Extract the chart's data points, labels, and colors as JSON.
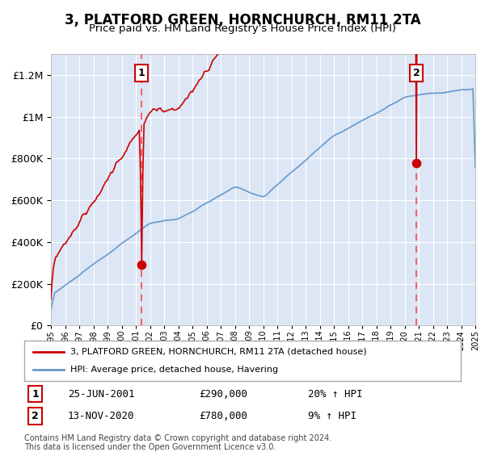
{
  "title": "3, PLATFORD GREEN, HORNCHURCH, RM11 2TA",
  "subtitle": "Price paid vs. HM Land Registry's House Price Index (HPI)",
  "title_fontsize": 12,
  "subtitle_fontsize": 10,
  "background_color": "#dce6f5",
  "plot_bg_color": "#dce6f5",
  "fig_bg_color": "#ffffff",
  "ylim": [
    0,
    1300000
  ],
  "yticks": [
    0,
    200000,
    400000,
    600000,
    800000,
    1000000,
    1200000
  ],
  "ytick_labels": [
    "£0",
    "£200K",
    "£400K",
    "£600K",
    "£800K",
    "£1M",
    "£1.2M"
  ],
  "hpi_line_color": "#6699cc",
  "price_line_color": "#cc0000",
  "dashed_line_color": "#ff4444",
  "marker_color": "#cc0000",
  "grid_color": "#ffffff",
  "legend_label_red": "3, PLATFORD GREEN, HORNCHURCH, RM11 2TA (detached house)",
  "legend_label_blue": "HPI: Average price, detached house, Havering",
  "sale1_date": "25-JUN-2001",
  "sale1_price": 290000,
  "sale1_hpi_pct": "20%",
  "sale2_date": "13-NOV-2020",
  "sale2_price": 780000,
  "sale2_hpi_pct": "9%",
  "footer": "Contains HM Land Registry data © Crown copyright and database right 2024.\nThis data is licensed under the Open Government Licence v3.0.",
  "xstart_year": 1995,
  "xend_year": 2025
}
